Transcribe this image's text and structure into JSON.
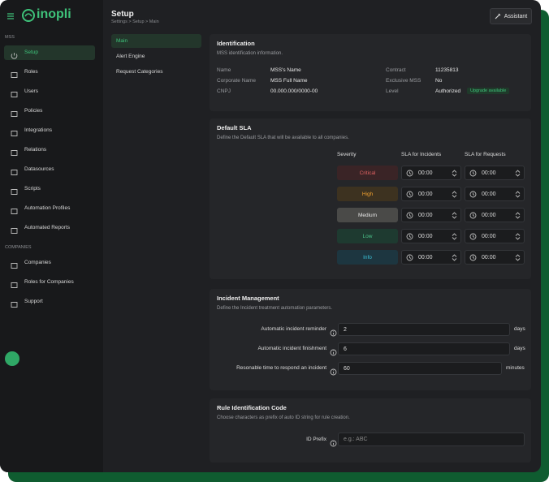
{
  "brand": "inopli",
  "sidebar": {
    "sections": [
      {
        "label": "MSS",
        "items": [
          "Setup",
          "Roles",
          "Users",
          "Policies",
          "Integrations",
          "Relations",
          "Datasources",
          "Scripts",
          "Automation Profiles",
          "Automated Reports"
        ]
      },
      {
        "label": "COMPANIES",
        "items": [
          "Companies",
          "Roles for Companies",
          "Support"
        ]
      }
    ]
  },
  "header": {
    "title": "Setup",
    "breadcrumb": "Settings > Setup > Main",
    "assistant": "Assistant"
  },
  "subnav": [
    "Main",
    "Alert Engine",
    "Request Categories"
  ],
  "identification": {
    "title": "Identification",
    "subtitle": "MSS identification information.",
    "fields": [
      {
        "label": "Name",
        "value": "MSS's Name"
      },
      {
        "label": "Corporate Name",
        "value": "MSS Full Name"
      },
      {
        "label": "CNPJ",
        "value": "00.000.000/0000-00"
      },
      {
        "label": "Contract",
        "value": "11235813"
      },
      {
        "label": "Exclusive MSS",
        "value": "No"
      },
      {
        "label": "Level",
        "value": "Authorized"
      }
    ],
    "badge": "Upgrade available"
  },
  "sla": {
    "title": "Default SLA",
    "description": "Define the Default SLA that will be available to all companies.",
    "columns": [
      "Severity",
      "SLA for Incidents",
      "SLA for Requests"
    ],
    "rows": [
      {
        "severity": "Critical",
        "incident": "00:00",
        "request": "00:00"
      },
      {
        "severity": "High",
        "incident": "00:00",
        "request": "00:00"
      },
      {
        "severity": "Medium",
        "incident": "00:00",
        "request": "00:00"
      },
      {
        "severity": "Low",
        "incident": "00:00",
        "request": "00:00"
      },
      {
        "severity": "Info",
        "incident": "00:00",
        "request": "00:00"
      }
    ]
  },
  "incident": {
    "title": "Incident Management",
    "description": "Define the Incident treatment automation parameters.",
    "fields": [
      {
        "label": "Automatic incident reminder",
        "value": "2",
        "unit": "days"
      },
      {
        "label": "Automatic incident  finishment",
        "value": "6",
        "unit": "days"
      },
      {
        "label": "Resonable time to respond an incident",
        "value": "60",
        "unit": "minutes"
      }
    ]
  },
  "rule": {
    "title": "Rule Identification Code",
    "description": "Choose characters as prefix of auto ID string for rule creation.",
    "field": {
      "label": "ID Prefix",
      "placeholder": "e.g.: ABC"
    }
  }
}
